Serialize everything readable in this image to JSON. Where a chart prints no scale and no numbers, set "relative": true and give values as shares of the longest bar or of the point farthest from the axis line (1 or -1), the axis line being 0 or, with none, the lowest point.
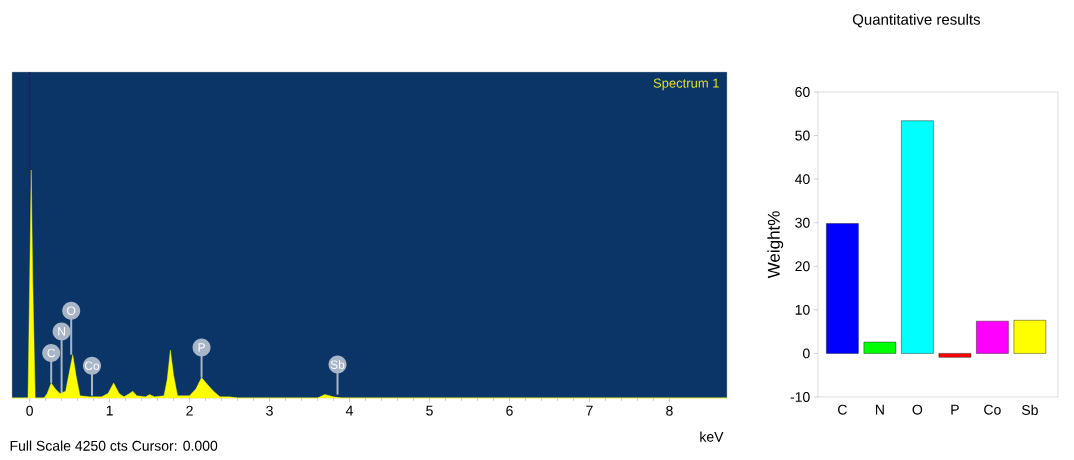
{
  "chart_data": [
    {
      "type": "area",
      "relative": true,
      "color": "#ffff00",
      "xlabel": "keV",
      "xlim": [
        -0.22,
        8.72
      ],
      "xticks": [
        0,
        1,
        2,
        3,
        4,
        5,
        6,
        7,
        8
      ],
      "x": [
        -0.22,
        -0.02,
        0.0,
        0.02,
        0.04,
        0.07,
        0.18,
        0.22,
        0.27,
        0.32,
        0.38,
        0.45,
        0.5,
        0.54,
        0.58,
        0.63,
        0.75,
        0.9,
        0.98,
        1.05,
        1.12,
        1.18,
        1.25,
        1.29,
        1.34,
        1.45,
        1.5,
        1.56,
        1.68,
        1.72,
        1.76,
        1.8,
        1.85,
        2.0,
        2.08,
        2.15,
        2.22,
        2.3,
        2.38,
        2.5,
        2.6,
        3.6,
        3.69,
        3.8,
        3.9,
        8.72
      ],
      "values": [
        0,
        0,
        0.5,
        1.0,
        0.5,
        0,
        0,
        0.02,
        0.066,
        0.04,
        0.02,
        0.03,
        0.12,
        0.19,
        0.1,
        0.01,
        0.005,
        0.005,
        0.02,
        0.066,
        0.02,
        0.005,
        0.02,
        0.03,
        0.01,
        0.005,
        0.015,
        0.005,
        0.01,
        0.08,
        0.21,
        0.1,
        0.01,
        0.01,
        0.04,
        0.09,
        0.06,
        0.03,
        0.005,
        0.005,
        0,
        0,
        0.015,
        0.005,
        0,
        0
      ],
      "ref_lines": [
        {
          "axis": "x",
          "value": 0,
          "color": "#1e2a36"
        }
      ],
      "annotations": [
        "Spectrum 1",
        "Full Scale 4250 cts Cursor: 0.000",
        {
          "text": "C",
          "x": 0.27,
          "y": 0.066
        },
        {
          "text": "N",
          "x": 0.4,
          "y": 0.02
        },
        {
          "text": "O",
          "x": 0.52,
          "y": 0.19
        },
        {
          "text": "Co",
          "x": 0.78,
          "y": 0.01
        },
        {
          "text": "P",
          "x": 2.15,
          "y": 0.09
        },
        {
          "text": "Sb",
          "x": 3.85,
          "y": 0.015
        }
      ]
    },
    {
      "type": "bar",
      "title": "Quantitative results",
      "ylabel": "Weight%",
      "categories": [
        "C",
        "N",
        "O",
        "P",
        "Co",
        "Sb"
      ],
      "values": [
        29.8,
        2.6,
        53.4,
        -0.9,
        7.4,
        7.6
      ],
      "colors": [
        "#0000ff",
        "#00ff00",
        "#00ffff",
        "#ff0000",
        "#ff00ff",
        "#ffff00"
      ],
      "ylim": [
        -10,
        60
      ],
      "yticks": [
        -10,
        0,
        10,
        20,
        30,
        40,
        50,
        60
      ]
    }
  ]
}
